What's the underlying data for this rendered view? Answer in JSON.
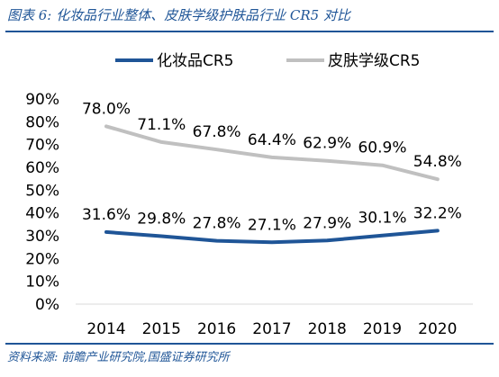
{
  "header": {
    "title": "图表 6:  化妆品行业整体、皮肤学级护肤品行业 CR5 对比"
  },
  "footer": {
    "source": "资料来源:  前瞻产业研究院,国盛证券研究所"
  },
  "chart_data": {
    "type": "line",
    "categories": [
      "2014",
      "2015",
      "2016",
      "2017",
      "2018",
      "2019",
      "2020"
    ],
    "series": [
      {
        "name": "化妆品CR5",
        "color": "#1f5597",
        "values": [
          31.6,
          29.8,
          27.8,
          27.1,
          27.9,
          30.1,
          32.2
        ],
        "labels": [
          "31.6%",
          "29.8%",
          "27.8%",
          "27.1%",
          "27.9%",
          "30.1%",
          "32.2%"
        ]
      },
      {
        "name": "皮肤学级CR5",
        "color": "#c0c0c0",
        "values": [
          78.0,
          71.1,
          67.8,
          64.4,
          62.9,
          60.9,
          54.8
        ],
        "labels": [
          "78.0%",
          "71.1%",
          "67.8%",
          "64.4%",
          "62.9%",
          "60.9%",
          "54.8%"
        ]
      }
    ],
    "ylim": [
      0,
      90
    ],
    "yticks": [
      0,
      10,
      20,
      30,
      40,
      50,
      60,
      70,
      80,
      90
    ],
    "ytick_labels": [
      "0%",
      "10%",
      "20%",
      "30%",
      "40%",
      "50%",
      "60%",
      "70%",
      "80%",
      "90%"
    ],
    "legend_position": "top",
    "grid": false
  }
}
